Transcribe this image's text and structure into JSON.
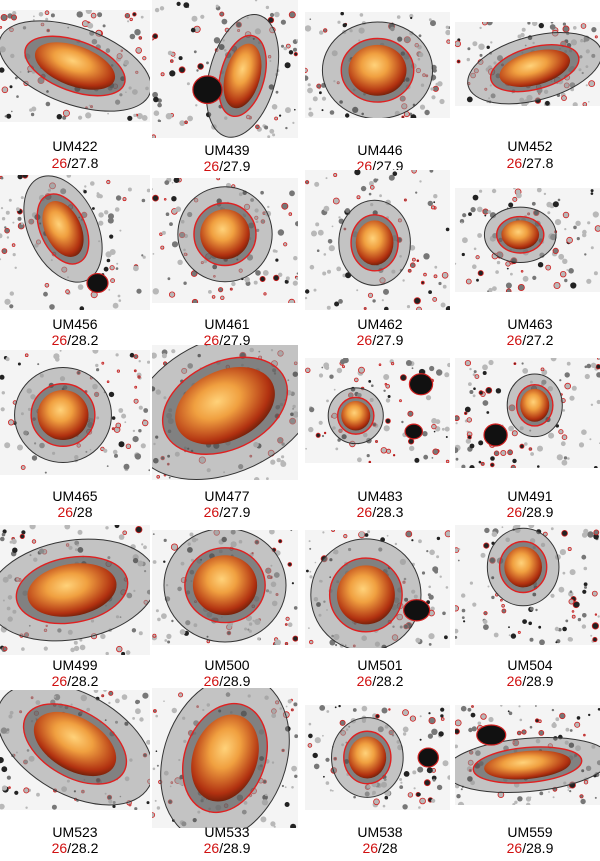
{
  "figure": {
    "panels": [
      {
        "name": "UM422",
        "iso_a": "26",
        "iso_b": "27.8"
      },
      {
        "name": "UM439",
        "iso_a": "26",
        "iso_b": "27.9"
      },
      {
        "name": "UM446",
        "iso_a": "26",
        "iso_b": "27.9"
      },
      {
        "name": "UM452",
        "iso_a": "26",
        "iso_b": "27.8"
      },
      {
        "name": "UM456",
        "iso_a": "26",
        "iso_b": "28.2"
      },
      {
        "name": "UM461",
        "iso_a": "26",
        "iso_b": "27.9"
      },
      {
        "name": "UM462",
        "iso_a": "26",
        "iso_b": "27.9"
      },
      {
        "name": "UM463",
        "iso_a": "26",
        "iso_b": "27.2"
      },
      {
        "name": "UM465",
        "iso_a": "26",
        "iso_b": "28"
      },
      {
        "name": "UM477",
        "iso_a": "26",
        "iso_b": "27.9"
      },
      {
        "name": "UM483",
        "iso_a": "26",
        "iso_b": "28.3"
      },
      {
        "name": "UM491",
        "iso_a": "26",
        "iso_b": "28.9"
      },
      {
        "name": "UM499",
        "iso_a": "26",
        "iso_b": "28.2"
      },
      {
        "name": "UM500",
        "iso_a": "26",
        "iso_b": "28.9"
      },
      {
        "name": "UM501",
        "iso_a": "26",
        "iso_b": "28.2"
      },
      {
        "name": "UM504",
        "iso_a": "26",
        "iso_b": "28.9"
      },
      {
        "name": "UM523",
        "iso_a": "26",
        "iso_b": "28.2"
      },
      {
        "name": "UM533",
        "iso_a": "26",
        "iso_b": "28.9"
      },
      {
        "name": "UM538",
        "iso_a": "26",
        "iso_b": "28"
      },
      {
        "name": "UM559",
        "iso_a": "26",
        "iso_b": "28.9"
      }
    ],
    "colors": {
      "isophote_inner": "#e02020",
      "iso_text_red": "#d01010",
      "galaxy_core": "#f0a040",
      "galaxy_edge": "#b03010"
    }
  }
}
